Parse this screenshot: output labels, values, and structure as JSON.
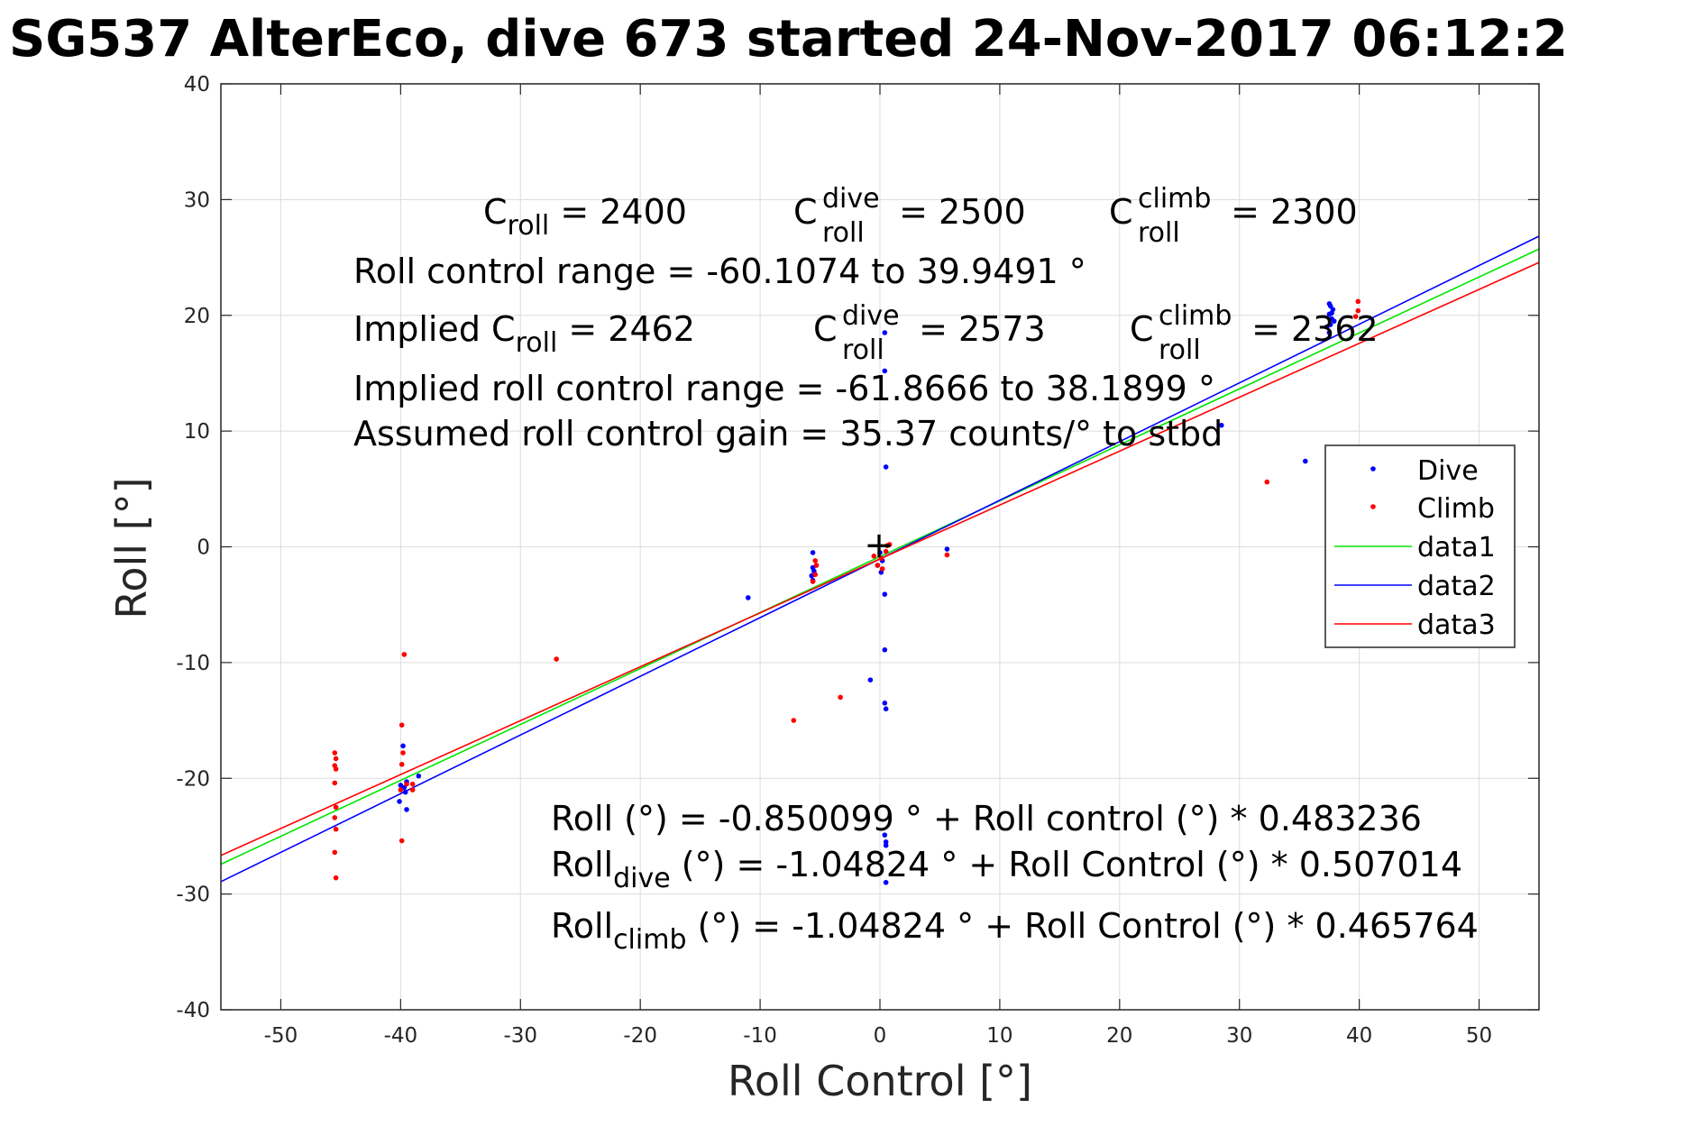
{
  "chart_data": {
    "type": "scatter",
    "title": "SG537 AlterEco, dive 673 started 24-Nov-2017 06:12:2",
    "xlabel": "Roll Control [°]",
    "ylabel": "Roll [°]",
    "xlim": [
      -55,
      55
    ],
    "ylim": [
      -40,
      40
    ],
    "xticks": [
      -50,
      -40,
      -30,
      -20,
      -10,
      0,
      10,
      20,
      30,
      40,
      50
    ],
    "yticks": [
      -40,
      -30,
      -20,
      -10,
      0,
      10,
      20,
      30,
      40
    ],
    "xtick_labels": [
      "-50",
      "-40",
      "-30",
      "-20",
      "-10",
      "0",
      "10",
      "20",
      "30",
      "40",
      "50"
    ],
    "ytick_labels": [
      "-40",
      "-30",
      "-20",
      "-10",
      "0",
      "10",
      "20",
      "30",
      "40"
    ],
    "grid": true,
    "legend_position": "right",
    "center_marker": {
      "x": 0,
      "y": 0,
      "symbol": "+"
    },
    "series": [
      {
        "name": "Dive",
        "kind": "points",
        "color": "#0000ff",
        "points": [
          [
            -39.8,
            -17.2
          ],
          [
            -39.5,
            -20.3
          ],
          [
            -40.0,
            -20.6
          ],
          [
            -39.6,
            -21.2
          ],
          [
            -40.1,
            -22.0
          ],
          [
            -39.5,
            -22.7
          ],
          [
            -38.5,
            -19.8
          ],
          [
            -39.7,
            -20.8
          ],
          [
            -11.0,
            -4.4
          ],
          [
            -5.6,
            -0.5
          ],
          [
            -5.6,
            -1.8
          ],
          [
            -5.5,
            -2.1
          ],
          [
            -5.7,
            -2.5
          ],
          [
            -5.6,
            -2.9
          ],
          [
            0.4,
            18.5
          ],
          [
            0.4,
            15.2
          ],
          [
            0.5,
            6.9
          ],
          [
            0.0,
            -0.5
          ],
          [
            0.2,
            -1.2
          ],
          [
            -0.2,
            -1.6
          ],
          [
            0.1,
            -2.2
          ],
          [
            0.4,
            -4.1
          ],
          [
            0.4,
            -8.9
          ],
          [
            -0.8,
            -11.5
          ],
          [
            0.4,
            -13.5
          ],
          [
            0.5,
            -14.0
          ],
          [
            0.4,
            -24.9
          ],
          [
            0.5,
            -25.5
          ],
          [
            0.5,
            -25.8
          ],
          [
            0.5,
            -29.0
          ],
          [
            5.6,
            -0.2
          ],
          [
            28.5,
            10.5
          ],
          [
            35.5,
            7.4
          ],
          [
            37.5,
            18.5
          ],
          [
            37.6,
            19.2
          ],
          [
            37.7,
            19.7
          ],
          [
            37.5,
            20.1
          ],
          [
            37.8,
            20.5
          ],
          [
            37.6,
            20.8
          ],
          [
            37.5,
            21.0
          ],
          [
            37.7,
            20.2
          ],
          [
            37.3,
            19.0
          ],
          [
            37.9,
            19.5
          ]
        ]
      },
      {
        "name": "Climb",
        "kind": "points",
        "color": "#ff0000",
        "points": [
          [
            -45.5,
            -17.8
          ],
          [
            -45.4,
            -18.3
          ],
          [
            -45.5,
            -18.9
          ],
          [
            -45.4,
            -19.2
          ],
          [
            -45.5,
            -20.4
          ],
          [
            -45.4,
            -22.5
          ],
          [
            -45.5,
            -23.4
          ],
          [
            -45.4,
            -24.4
          ],
          [
            -45.5,
            -26.4
          ],
          [
            -45.4,
            -28.6
          ],
          [
            -39.7,
            -9.3
          ],
          [
            -39.9,
            -15.4
          ],
          [
            -39.8,
            -17.8
          ],
          [
            -39.9,
            -18.8
          ],
          [
            -39.5,
            -20.5
          ],
          [
            -40.0,
            -21.0
          ],
          [
            -39.9,
            -25.4
          ],
          [
            -39.0,
            -20.5
          ],
          [
            -39.0,
            -21.0
          ],
          [
            -27.0,
            -9.7
          ],
          [
            -7.2,
            -15.0
          ],
          [
            -3.3,
            -13.0
          ],
          [
            -5.4,
            -1.2
          ],
          [
            -5.3,
            -1.6
          ],
          [
            -5.4,
            -2.4
          ],
          [
            -5.6,
            -3.0
          ],
          [
            -0.5,
            -0.8
          ],
          [
            0.1,
            -1.0
          ],
          [
            0.6,
            0.1
          ],
          [
            0.5,
            -0.4
          ],
          [
            -0.2,
            -1.6
          ],
          [
            0.2,
            -1.9
          ],
          [
            0.8,
            0.2
          ],
          [
            5.6,
            -0.7
          ],
          [
            32.3,
            5.6
          ],
          [
            39.9,
            21.2
          ],
          [
            39.9,
            20.4
          ],
          [
            39.7,
            19.9
          ]
        ]
      },
      {
        "name": "data1",
        "kind": "line",
        "color": "#00e600",
        "intercept": -0.850099,
        "slope": 0.483236,
        "x_range": [
          -55,
          55
        ]
      },
      {
        "name": "data2",
        "kind": "line",
        "color": "#0000ff",
        "intercept": -1.04824,
        "slope": 0.507014,
        "x_range": [
          -55,
          55
        ]
      },
      {
        "name": "data3",
        "kind": "line",
        "color": "#ff0000",
        "intercept": -1.04824,
        "slope": 0.465764,
        "x_range": [
          -55,
          55
        ]
      }
    ],
    "annotations": {
      "c_roll_label": "C",
      "c_roll_sub": "roll",
      "c_roll_text": " = 2400",
      "c_dive_label": "C",
      "c_dive_sup": "dive",
      "c_dive_sub": "roll",
      "c_dive_text": " = 2500",
      "c_climb_label": "C",
      "c_climb_sup": "climb",
      "c_climb_sub": "roll",
      "c_climb_text": " = 2300",
      "range_line": "Roll control range = -60.1074 to 39.9491 °",
      "implied_prefix": "Implied C",
      "implied_sub": "roll",
      "implied_text": " = 2462",
      "implied_dive_label": "C",
      "implied_dive_sup": "dive",
      "implied_dive_sub": "roll",
      "implied_dive_text": " = 2573",
      "implied_climb_label": "C",
      "implied_climb_sup": "climb",
      "implied_climb_sub": "roll",
      "implied_climb_text": " = 2362",
      "implied_range_line": "Implied roll control range = -61.8666 to 38.1899 °",
      "gain_line": "Assumed roll control gain = 35.37 counts/° to stbd",
      "fit_line": "Roll (°) = -0.850099 ° + Roll control (°) * 0.483236",
      "fit_dive_prefix": "Roll",
      "fit_dive_sub": "dive",
      "fit_dive_text": " (°) = -1.04824 ° + Roll Control (°) * 0.507014",
      "fit_climb_prefix": "Roll",
      "fit_climb_sub": "climb",
      "fit_climb_text": " (°) = -1.04824 ° + Roll Control (°) * 0.465764"
    }
  }
}
